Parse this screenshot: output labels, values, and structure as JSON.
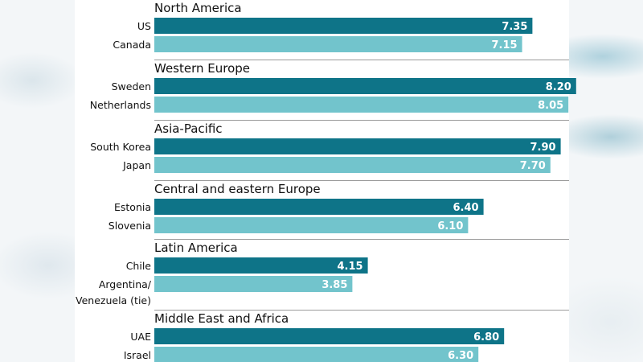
{
  "chart_data": {
    "type": "bar",
    "orientation": "horizontal",
    "title": "",
    "xlim": [
      0,
      8.4
    ],
    "colors": {
      "primary": "#0e7488",
      "secondary": "#72c4cc"
    },
    "groups": [
      {
        "region": "North America",
        "items": [
          {
            "name": "US",
            "value": 7.35,
            "label": "7.35"
          },
          {
            "name": "Canada",
            "value": 7.15,
            "label": "7.15"
          }
        ]
      },
      {
        "region": "Western Europe",
        "items": [
          {
            "name": "Sweden",
            "value": 8.2,
            "label": "8.20"
          },
          {
            "name": "Netherlands",
            "value": 8.05,
            "label": "8.05"
          }
        ]
      },
      {
        "region": "Asia-Pacific",
        "items": [
          {
            "name": "South Korea",
            "value": 7.9,
            "label": "7.90"
          },
          {
            "name": "Japan",
            "value": 7.7,
            "label": "7.70"
          }
        ]
      },
      {
        "region": "Central and eastern Europe",
        "items": [
          {
            "name": "Estonia",
            "value": 6.4,
            "label": "6.40"
          },
          {
            "name": "Slovenia",
            "value": 6.1,
            "label": "6.10"
          }
        ]
      },
      {
        "region": "Latin America",
        "items": [
          {
            "name": "Chile",
            "value": 4.15,
            "label": "4.15"
          },
          {
            "name": "Argentina/ Venezuela (tie)",
            "value": 3.85,
            "label": "3.85"
          }
        ]
      },
      {
        "region": "Middle East and Africa",
        "items": [
          {
            "name": "UAE",
            "value": 6.8,
            "label": "6.80"
          },
          {
            "name": "Israel",
            "value": 6.3,
            "label": "6.30"
          }
        ]
      }
    ]
  }
}
